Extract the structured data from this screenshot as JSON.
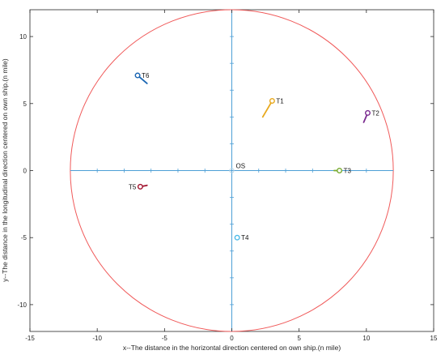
{
  "chart_data": {
    "type": "scatter",
    "title": "",
    "xlabel": "x--The distance in the horizontal direction centered on own ship.(n mile)",
    "ylabel": "y--The distance in the longitudinal direction centered on own ship.(n mile)",
    "xlim": [
      -15,
      15
    ],
    "ylim": [
      -12,
      12
    ],
    "xticks": [
      -15,
      -10,
      -5,
      0,
      5,
      10,
      15
    ],
    "yticks": [
      -10,
      -5,
      0,
      5,
      10
    ],
    "grid": false,
    "legend": "none",
    "range_circle": {
      "center": [
        0,
        0
      ],
      "radius": 12,
      "color": "#f05a5a"
    },
    "crosshair": {
      "extent": 12,
      "tick_step": 2,
      "color": "#4d9fd6"
    },
    "own_ship": {
      "label": "OS",
      "x": 0,
      "y": 0,
      "color": "#b8d4e6"
    },
    "targets": [
      {
        "name": "T1",
        "x": 3.0,
        "y": 5.2,
        "tail": [
          2.3,
          4.0
        ],
        "color": "#e8a91e"
      },
      {
        "name": "T2",
        "x": 10.1,
        "y": 4.3,
        "tail": [
          9.8,
          3.6
        ],
        "color": "#7a2b8f"
      },
      {
        "name": "T3",
        "x": 8.0,
        "y": 0.0,
        "tail": [
          7.6,
          0.0
        ],
        "color": "#78ab30"
      },
      {
        "name": "T4",
        "x": 0.4,
        "y": -5.0,
        "tail": [
          0.4,
          -5.0
        ],
        "color": "#4dbbe8"
      },
      {
        "name": "T5",
        "x": -6.8,
        "y": -1.2,
        "tail": [
          -6.3,
          -1.1
        ],
        "color": "#a2142f"
      },
      {
        "name": "T6",
        "x": -7.0,
        "y": 7.1,
        "tail": [
          -6.3,
          6.5
        ],
        "color": "#1a66b3"
      }
    ]
  }
}
